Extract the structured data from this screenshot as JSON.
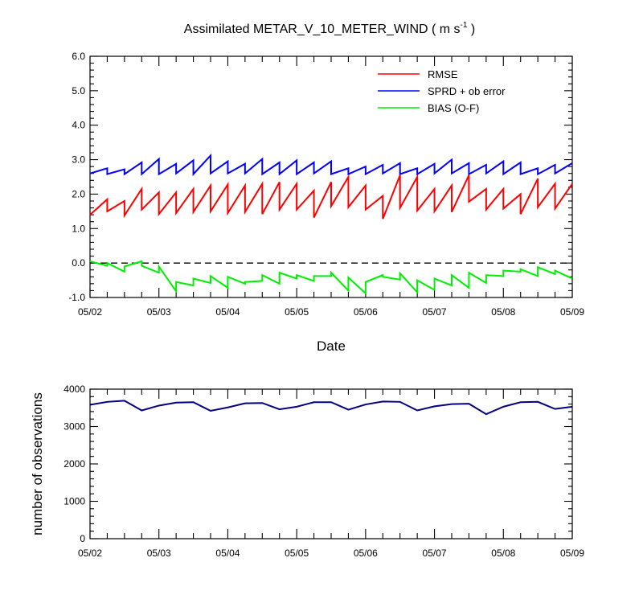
{
  "chart_data": [
    {
      "type": "line",
      "title": "Assimilated METAR_V_10_METER_WIND ( m s",
      "title_sup": "-1",
      "title_end": " )",
      "xlabel": "Date",
      "ylabel": "",
      "xlim": [
        0,
        7
      ],
      "ylim": [
        -1.0,
        6.0
      ],
      "x_tick_labels": [
        "05/02",
        "05/03",
        "05/04",
        "05/05",
        "05/06",
        "05/07",
        "05/08",
        "05/09"
      ],
      "y_tick_labels": [
        "-1.0",
        "0.0",
        "1.0",
        "2.0",
        "3.0",
        "4.0",
        "5.0",
        "6.0"
      ],
      "legend_position": "top-right",
      "zero_line": "dashed",
      "series": [
        {
          "name": "RMSE",
          "color": "#ff0000",
          "x": [
            0,
            0,
            0.25,
            0.25,
            0.5,
            0.5,
            0.75,
            0.75,
            1,
            1,
            1.25,
            1.25,
            1.5,
            1.5,
            1.75,
            1.75,
            2,
            2,
            2.25,
            2.25,
            2.5,
            2.5,
            2.75,
            2.75,
            3,
            3,
            3.25,
            3.25,
            3.5,
            3.5,
            3.75,
            3.75,
            4,
            4,
            4.25,
            4.25,
            4.5,
            4.5,
            4.75,
            4.75,
            5,
            5,
            5.25,
            5.25,
            5.5,
            5.5,
            5.75,
            5.75,
            6,
            6,
            6.25,
            6.25,
            6.5,
            6.5,
            6.75,
            6.75,
            7
          ],
          "y": [
            1.4,
            1.4,
            1.85,
            1.5,
            1.8,
            1.38,
            2.15,
            1.55,
            2.05,
            1.42,
            2.05,
            1.45,
            2.15,
            1.48,
            2.25,
            1.5,
            2.28,
            1.45,
            2.25,
            1.48,
            2.3,
            1.42,
            2.35,
            1.55,
            2.3,
            1.55,
            2.1,
            1.32,
            2.35,
            1.65,
            2.5,
            1.62,
            2.25,
            1.55,
            1.95,
            1.28,
            2.55,
            1.6,
            2.5,
            1.52,
            2.15,
            1.5,
            2.25,
            1.48,
            2.55,
            1.78,
            2.15,
            1.55,
            2.15,
            1.58,
            2.0,
            1.42,
            2.45,
            1.62,
            2.3,
            1.58,
            2.3
          ]
        },
        {
          "name": "SPRD + ob error",
          "color": "#0000ff",
          "x": [
            0,
            0,
            0.25,
            0.25,
            0.5,
            0.5,
            0.75,
            0.75,
            1,
            1,
            1.25,
            1.25,
            1.5,
            1.5,
            1.75,
            1.75,
            2,
            2,
            2.25,
            2.25,
            2.5,
            2.5,
            2.75,
            2.75,
            3,
            3,
            3.25,
            3.25,
            3.5,
            3.5,
            3.75,
            3.75,
            4,
            4,
            4.25,
            4.25,
            4.5,
            4.5,
            4.75,
            4.75,
            5,
            5,
            5.25,
            5.25,
            5.5,
            5.5,
            5.75,
            5.75,
            6,
            6,
            6.25,
            6.25,
            6.5,
            6.5,
            6.75,
            6.75,
            7
          ],
          "y": [
            2.6,
            2.6,
            2.75,
            2.58,
            2.72,
            2.58,
            2.92,
            2.58,
            3.02,
            2.58,
            2.88,
            2.6,
            2.98,
            2.58,
            3.12,
            2.6,
            2.95,
            2.6,
            2.88,
            2.6,
            3.02,
            2.58,
            2.92,
            2.58,
            2.98,
            2.58,
            2.92,
            2.6,
            2.95,
            2.58,
            2.75,
            2.58,
            2.8,
            2.58,
            2.85,
            2.6,
            2.9,
            2.58,
            2.75,
            2.58,
            2.88,
            2.6,
            3.0,
            2.6,
            2.9,
            2.58,
            2.85,
            2.6,
            2.95,
            2.58,
            2.92,
            2.58,
            2.75,
            2.58,
            2.85,
            2.6,
            2.9
          ]
        },
        {
          "name": "BIAS (O-F)",
          "color": "#00ee00",
          "x": [
            0,
            0,
            0.25,
            0.25,
            0.5,
            0.5,
            0.75,
            0.75,
            1,
            1,
            1.25,
            1.25,
            1.5,
            1.5,
            1.75,
            1.75,
            2,
            2,
            2.25,
            2.25,
            2.5,
            2.5,
            2.75,
            2.75,
            3,
            3,
            3.25,
            3.25,
            3.5,
            3.5,
            3.75,
            3.75,
            4,
            4,
            4.25,
            4.25,
            4.5,
            4.5,
            4.75,
            4.75,
            5,
            5,
            5.25,
            5.25,
            5.5,
            5.5,
            5.75,
            5.75,
            6,
            6,
            6.25,
            6.25,
            6.5,
            6.5,
            6.75,
            6.75,
            7
          ],
          "y": [
            0.05,
            0.05,
            -0.08,
            0.0,
            -0.25,
            -0.1,
            0.05,
            -0.08,
            -0.28,
            -0.1,
            -0.82,
            -0.55,
            -0.65,
            -0.45,
            -0.58,
            -0.38,
            -0.72,
            -0.4,
            -0.6,
            -0.55,
            -0.52,
            -0.35,
            -0.6,
            -0.28,
            -0.45,
            -0.35,
            -0.52,
            -0.38,
            -0.38,
            -0.28,
            -0.8,
            -0.42,
            -0.88,
            -0.55,
            -0.35,
            -0.4,
            -0.48,
            -0.3,
            -0.85,
            -0.5,
            -0.78,
            -0.45,
            -0.65,
            -0.35,
            -0.72,
            -0.28,
            -0.58,
            -0.35,
            -0.38,
            -0.22,
            -0.25,
            -0.18,
            -0.38,
            -0.12,
            -0.32,
            -0.22,
            -0.45
          ]
        }
      ]
    },
    {
      "type": "line",
      "title": "",
      "xlabel": "",
      "ylabel": "number of observations",
      "xlim": [
        0,
        7
      ],
      "ylim": [
        0,
        4000
      ],
      "x_tick_labels": [
        "05/02",
        "05/03",
        "05/04",
        "05/05",
        "05/06",
        "05/07",
        "05/08",
        "05/09"
      ],
      "y_tick_labels": [
        "0",
        "1000",
        "2000",
        "3000",
        "4000"
      ],
      "series": [
        {
          "name": "",
          "color": "#000080",
          "x": [
            0,
            0.25,
            0.5,
            0.75,
            1,
            1.25,
            1.5,
            1.75,
            2,
            2.25,
            2.5,
            2.75,
            3,
            3.25,
            3.5,
            3.75,
            4,
            4.25,
            4.5,
            4.75,
            5,
            5.25,
            5.5,
            5.75,
            6,
            6.25,
            6.5,
            6.75,
            7
          ],
          "y": [
            3580,
            3660,
            3690,
            3430,
            3560,
            3640,
            3650,
            3420,
            3510,
            3620,
            3630,
            3460,
            3530,
            3650,
            3650,
            3450,
            3590,
            3670,
            3660,
            3430,
            3540,
            3600,
            3610,
            3330,
            3530,
            3650,
            3660,
            3470,
            3530
          ]
        }
      ]
    }
  ]
}
